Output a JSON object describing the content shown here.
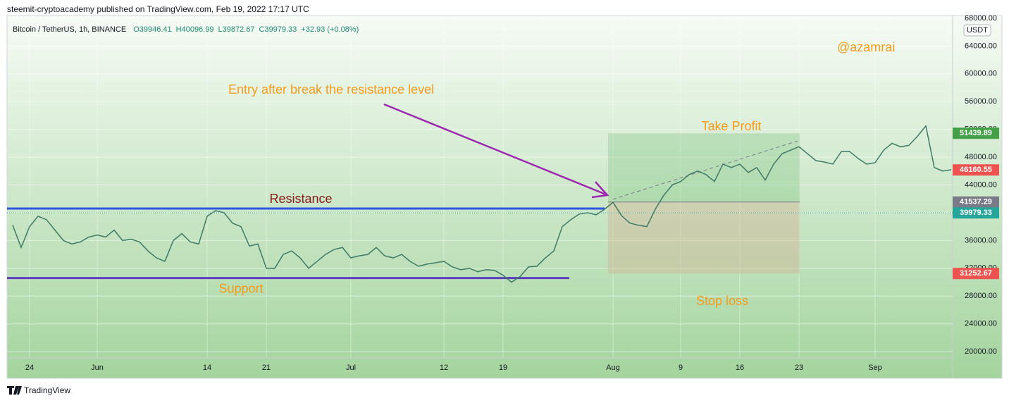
{
  "header": {
    "publisher": "steemit-cryptoacademy published on TradingView.com, Feb 19, 2022 17:17 UTC",
    "symbol": "Bitcoin / TetherUS, 1h, BINANCE",
    "ohlc": [
      "O39946.41",
      "H40096.99",
      "L39872.67",
      "C39979.33",
      "+32.93 (+0.08%)"
    ],
    "currency": "USDT"
  },
  "footer": {
    "brand": "TradingView"
  },
  "chart_data": {
    "type": "line",
    "color": "#3f7a66",
    "categories": [
      null,
      null,
      "24",
      null,
      null,
      null,
      null,
      null,
      null,
      null,
      "Jun",
      null,
      null,
      null,
      null,
      null,
      null,
      null,
      null,
      null,
      null,
      null,
      null,
      "14",
      null,
      null,
      null,
      null,
      null,
      null,
      "21",
      null,
      null,
      null,
      null,
      null,
      null,
      null,
      null,
      null,
      "Jul",
      null,
      null,
      null,
      null,
      null,
      null,
      null,
      null,
      null,
      null,
      "12",
      null,
      null,
      null,
      null,
      null,
      null,
      "19",
      null,
      null,
      null,
      null,
      null,
      null,
      null,
      null,
      null,
      null,
      null,
      null,
      "Aug",
      null,
      null,
      null,
      null,
      null,
      null,
      null,
      "9",
      null,
      null,
      null,
      null,
      null,
      null,
      "16",
      null,
      null,
      null,
      null,
      null,
      null,
      "23",
      null,
      null,
      null,
      null,
      null,
      null,
      null,
      null,
      "Sep",
      null,
      null,
      null,
      null,
      null,
      null,
      null,
      null,
      null
    ],
    "values": [
      38200,
      35000,
      38000,
      39500,
      39000,
      37500,
      36000,
      35500,
      35800,
      36500,
      36800,
      36500,
      37500,
      36000,
      36200,
      35800,
      34500,
      33500,
      33000,
      36000,
      37000,
      35800,
      35500,
      39500,
      40300,
      40000,
      38500,
      38000,
      35200,
      35500,
      32000,
      32000,
      34000,
      34500,
      33500,
      32000,
      33000,
      34000,
      34700,
      35000,
      33500,
      33800,
      34000,
      35000,
      33800,
      33500,
      34000,
      33000,
      32300,
      32600,
      32800,
      33000,
      32200,
      31800,
      32000,
      31500,
      31800,
      31700,
      31000,
      30000,
      30800,
      32200,
      32300,
      33500,
      34500,
      38000,
      39000,
      39800,
      40000,
      39700,
      40500,
      41500,
      39600,
      38500,
      38200,
      38000,
      40500,
      42500,
      44000,
      44500,
      45500,
      46000,
      45500,
      44500,
      47000,
      46500,
      47000,
      45800,
      46500,
      44700,
      47000,
      48500,
      49000,
      49500,
      48500,
      47500,
      47300,
      47000,
      48800,
      48800,
      47800,
      47000,
      47200,
      49000,
      50000,
      49500,
      49700,
      51000,
      52500,
      46500,
      46000,
      46200
    ],
    "ylim": [
      19100,
      68600
    ],
    "yticks": [
      {
        "value": 20000,
        "label": "20000.00"
      },
      {
        "value": 24000,
        "label": "24000.00"
      },
      {
        "value": 28000,
        "label": "28000.00"
      },
      {
        "value": 32000,
        "label": "32000.00"
      },
      {
        "value": 36000,
        "label": "36000.00"
      },
      {
        "value": 40000,
        "label": "40000.00"
      },
      {
        "value": 44000,
        "label": "44000.00"
      },
      {
        "value": 48000,
        "label": "48000.00"
      },
      {
        "value": 52000,
        "label": "52000.00"
      },
      {
        "value": 56000,
        "label": "56000.00"
      },
      {
        "value": 60000,
        "label": "60000.00"
      },
      {
        "value": 64000,
        "label": "64000.00"
      },
      {
        "value": 68000,
        "label": "68000.00"
      }
    ],
    "grid": true,
    "levels": [
      {
        "name": "Resistance",
        "value": 40600,
        "color": "#2f56e0"
      },
      {
        "name": "Support",
        "value": 30600,
        "color": "#5b3fc0"
      }
    ],
    "position": {
      "target": {
        "value": 51439.89,
        "color": "#43a047"
      },
      "entry": {
        "value": 41537.29,
        "color": "#787b86"
      },
      "stop": {
        "value": 31252.67,
        "color": "#ef5350"
      }
    },
    "price_labels": [
      {
        "value": 46160.55,
        "color": "#ef5350"
      },
      {
        "value": 39979.33,
        "color": "#26a69a"
      }
    ],
    "annotations": {
      "author": "@azamrai",
      "entry_note": "Entry after break the resistance level",
      "take_profit": "Take Profit",
      "stop_loss": "Stop loss"
    }
  }
}
